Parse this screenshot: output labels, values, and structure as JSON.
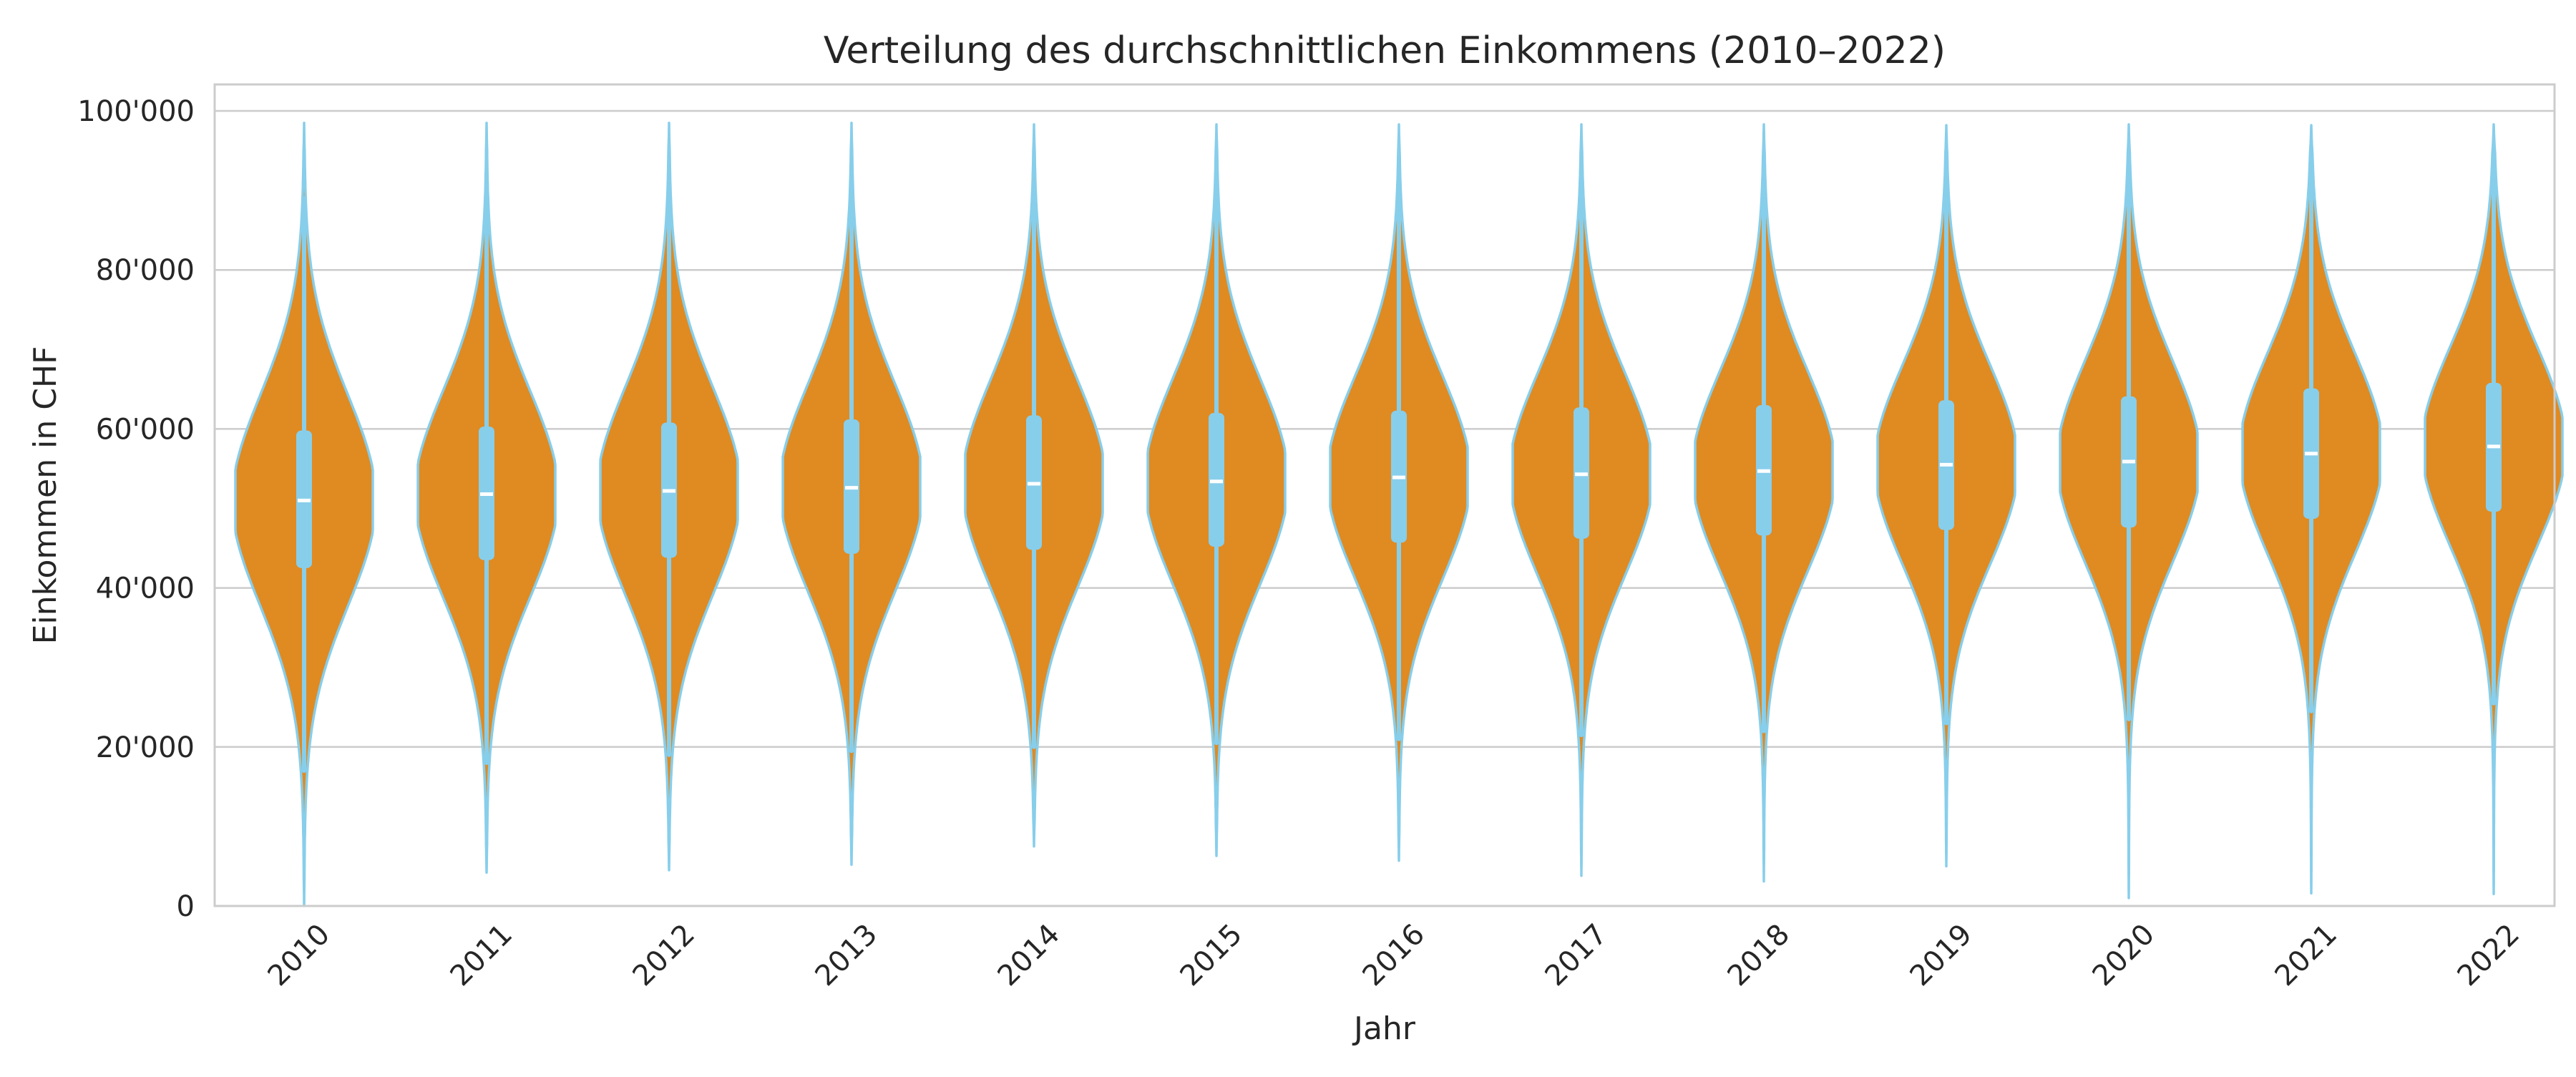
{
  "chart_data": {
    "type": "violin",
    "title": "Verteilung des durchschnittlichen Einkommens (2010–2022)",
    "xlabel": "Jahr",
    "ylabel": "Einkommen in CHF",
    "ylim": [
      0,
      103000
    ],
    "yticks": [
      0,
      20000,
      40000,
      60000,
      80000,
      100000
    ],
    "ytick_labels": [
      "0",
      "20'000",
      "40'000",
      "60'000",
      "80'000",
      "100'000"
    ],
    "grid": "horizontal",
    "colors": {
      "fill": "#e08a22",
      "edge": "#87ceeb",
      "box": "#87ceeb",
      "median": "#ffffff",
      "grid": "#cccccc",
      "frame": "#cccccc"
    },
    "categories": [
      "2010",
      "2011",
      "2012",
      "2013",
      "2014",
      "2015",
      "2016",
      "2017",
      "2018",
      "2019",
      "2020",
      "2021",
      "2022"
    ],
    "series": [
      {
        "category": "2010",
        "min": 0,
        "whisker_low": 17000,
        "q1": 42500,
        "median": 51000,
        "q3": 59800,
        "whisker_high": 89000,
        "max": 98500
      },
      {
        "category": "2011",
        "min": 4200,
        "whisker_low": 18000,
        "q1": 43500,
        "median": 51800,
        "q3": 60300,
        "whisker_high": 90000,
        "max": 98500
      },
      {
        "category": "2012",
        "min": 4500,
        "whisker_low": 19000,
        "q1": 43800,
        "median": 52200,
        "q3": 60800,
        "whisker_high": 90500,
        "max": 98500
      },
      {
        "category": "2013",
        "min": 5200,
        "whisker_low": 19500,
        "q1": 44300,
        "median": 52600,
        "q3": 61200,
        "whisker_high": 91000,
        "max": 98500
      },
      {
        "category": "2014",
        "min": 7500,
        "whisker_low": 20000,
        "q1": 44800,
        "median": 53100,
        "q3": 61700,
        "whisker_high": 91000,
        "max": 98300
      },
      {
        "category": "2015",
        "min": 6300,
        "whisker_low": 20500,
        "q1": 45200,
        "median": 53400,
        "q3": 62000,
        "whisker_high": 91500,
        "max": 98300
      },
      {
        "category": "2016",
        "min": 5700,
        "whisker_low": 21000,
        "q1": 45700,
        "median": 53900,
        "q3": 62300,
        "whisker_high": 92000,
        "max": 98300
      },
      {
        "category": "2017",
        "min": 3800,
        "whisker_low": 21500,
        "q1": 46200,
        "median": 54300,
        "q3": 62700,
        "whisker_high": 92500,
        "max": 98300
      },
      {
        "category": "2018",
        "min": 3100,
        "whisker_low": 22000,
        "q1": 46600,
        "median": 54700,
        "q3": 63000,
        "whisker_high": 93000,
        "max": 98300
      },
      {
        "category": "2019",
        "min": 5000,
        "whisker_low": 23000,
        "q1": 47300,
        "median": 55500,
        "q3": 63600,
        "whisker_high": 93500,
        "max": 98200
      },
      {
        "category": "2020",
        "min": 1000,
        "whisker_low": 23500,
        "q1": 47600,
        "median": 55900,
        "q3": 64100,
        "whisker_high": 94000,
        "max": 98300
      },
      {
        "category": "2021",
        "min": 1600,
        "whisker_low": 24500,
        "q1": 48700,
        "median": 56900,
        "q3": 65100,
        "whisker_high": 94500,
        "max": 98200
      },
      {
        "category": "2022",
        "min": 1500,
        "whisker_low": 25500,
        "q1": 49600,
        "median": 57800,
        "q3": 65800,
        "whisker_high": 95000,
        "max": 98300
      }
    ]
  }
}
